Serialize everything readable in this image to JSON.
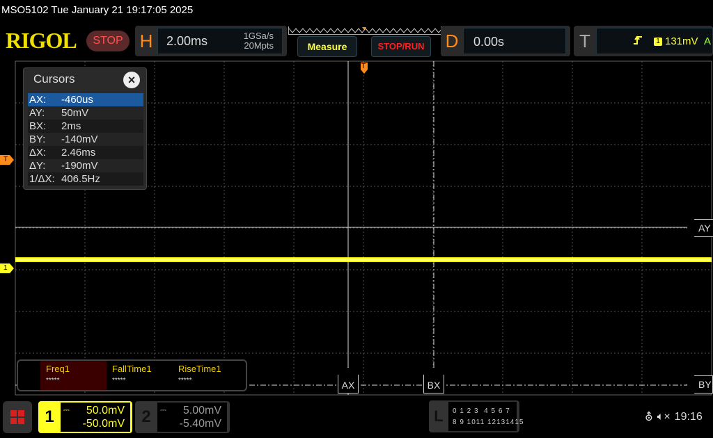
{
  "title": "MSO5102  Tue January 21 19:17:05 2025",
  "logo": "RIGOL",
  "run_state": "STOP",
  "horizontal": {
    "letter": "H",
    "timebase": "2.00ms",
    "sample_rate": "1GSa/s",
    "memory_depth": "20Mpts"
  },
  "buttons": {
    "measure": "Measure",
    "stop_run": "STOP/RUN"
  },
  "delay": {
    "letter": "D",
    "value": "0.00s"
  },
  "trigger": {
    "letter": "T",
    "edge": "rising-edge-icon",
    "source": "1",
    "level": "131mV",
    "mode": "A"
  },
  "markers": {
    "trigger": "T",
    "channel1": "1",
    "ay": "AY",
    "by": "BY",
    "ax": "AX",
    "bx": "BX"
  },
  "cursors": {
    "title": "Cursors",
    "rows": [
      {
        "key": "AX:",
        "value": "-460us"
      },
      {
        "key": "AY:",
        "value": "50mV"
      },
      {
        "key": "BX:",
        "value": "2ms"
      },
      {
        "key": "BY:",
        "value": "-140mV"
      },
      {
        "key": "ΔX:",
        "value": "2.46ms"
      },
      {
        "key": "ΔY:",
        "value": "-190mV"
      },
      {
        "key": "1/ΔX:",
        "value": "406.5Hz"
      }
    ]
  },
  "measurements": [
    {
      "name": "Freq1",
      "value": "*****"
    },
    {
      "name": "FallTime1",
      "value": "*****"
    },
    {
      "name": "RiseTime1",
      "value": "*****"
    }
  ],
  "channel1": {
    "number": "1",
    "scale": "50.0mV",
    "offset": "-50.0mV"
  },
  "channel2": {
    "number": "2",
    "scale": "5.00mV",
    "offset": "-5.40mV"
  },
  "logic": {
    "letter": "L",
    "row1": "0 1 2 3  4 5 6 7",
    "row2": "8 9 1011 12131415"
  },
  "status": {
    "time": "19:16",
    "usb": "usb-icon",
    "sound": "mute-icon"
  },
  "colors": {
    "channel1": "#ffff20",
    "accent": "#ff8c1a",
    "stop": "#ff2020"
  }
}
